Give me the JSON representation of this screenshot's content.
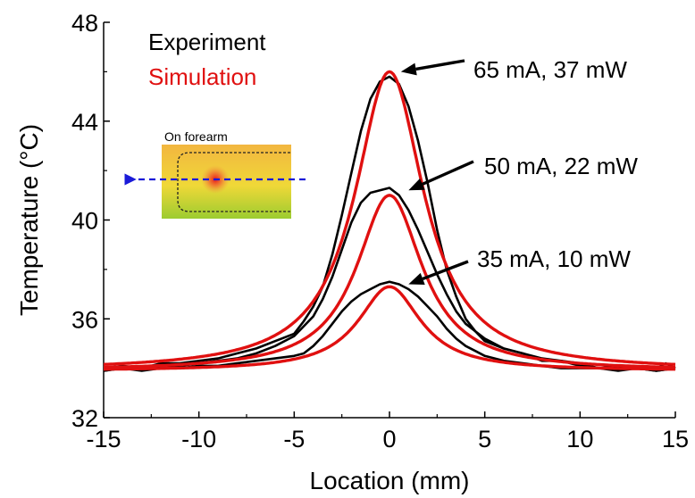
{
  "chart_data": {
    "type": "line",
    "xlabel": "Location (mm)",
    "ylabel": "Temperature (°C)",
    "xlim": [
      -15,
      15
    ],
    "ylim": [
      32,
      48
    ],
    "xticks": [
      -15,
      -10,
      -5,
      0,
      5,
      10,
      15
    ],
    "yticks": [
      32,
      36,
      40,
      44,
      48
    ],
    "legend": [
      {
        "name": "Experiment",
        "color": "#000000"
      },
      {
        "name": "Simulation",
        "color": "#e01010"
      }
    ],
    "inset": {
      "title": "On forearm"
    },
    "annotations": [
      {
        "text": "65 mA, 37 mW",
        "target": [
          0.6,
          46.0
        ]
      },
      {
        "text": "50 mA, 22 mW",
        "target": [
          1.0,
          41.2
        ]
      },
      {
        "text": "35 mA, 10 mW",
        "target": [
          1.0,
          37.4
        ]
      }
    ],
    "series": [
      {
        "group": "Experiment",
        "color": "#000000",
        "x": [
          -15,
          -14,
          -13,
          -12,
          -11,
          -10,
          -9,
          -8,
          -7,
          -6,
          -5,
          -4.5,
          -4,
          -3.5,
          -3,
          -2.5,
          -2,
          -1.5,
          -1,
          -0.5,
          0,
          0.5,
          1,
          1.5,
          2,
          2.5,
          3,
          3.5,
          4,
          4.5,
          5,
          6,
          7,
          8,
          9,
          10,
          11,
          12,
          13,
          14,
          14.5,
          15
        ],
        "y": [
          34.0,
          34.1,
          34.0,
          34.2,
          34.2,
          34.3,
          34.4,
          34.6,
          34.8,
          35.1,
          35.4,
          35.9,
          36.5,
          37.3,
          38.6,
          40.2,
          41.9,
          43.6,
          44.9,
          45.6,
          45.8,
          45.5,
          44.6,
          43.2,
          41.5,
          39.6,
          38.0,
          36.9,
          36.0,
          35.5,
          35.1,
          34.8,
          34.6,
          34.3,
          34.3,
          34.2,
          34.0,
          34.1,
          34.0,
          34.0,
          34.2,
          34.0
        ]
      },
      {
        "group": "Experiment",
        "color": "#000000",
        "x": [
          -15,
          -14,
          -13,
          -12,
          -11,
          -10,
          -9,
          -8,
          -7,
          -6,
          -5,
          -4.5,
          -4,
          -3.5,
          -3,
          -2.5,
          -2,
          -1.5,
          -1,
          -0.5,
          0,
          0.5,
          1,
          1.5,
          2,
          2.5,
          3,
          3.5,
          4,
          4.5,
          5,
          6,
          7,
          8,
          9,
          10,
          11,
          12,
          13,
          14,
          15
        ],
        "y": [
          33.9,
          34.0,
          34.0,
          34.1,
          34.1,
          34.2,
          34.3,
          34.4,
          34.6,
          34.9,
          35.3,
          35.7,
          36.1,
          36.8,
          37.7,
          38.8,
          39.9,
          40.7,
          41.1,
          41.2,
          41.3,
          41.0,
          40.4,
          39.6,
          38.7,
          37.8,
          37.0,
          36.3,
          35.8,
          35.5,
          35.2,
          34.8,
          34.6,
          34.4,
          34.3,
          34.1,
          34.0,
          34.0,
          34.0,
          33.9,
          34.0
        ]
      },
      {
        "group": "Experiment",
        "color": "#000000",
        "x": [
          -15,
          -14,
          -13,
          -12,
          -11,
          -10,
          -9,
          -8,
          -7,
          -6,
          -5,
          -4.5,
          -4,
          -3.5,
          -3,
          -2.5,
          -2,
          -1.5,
          -1,
          -0.5,
          0,
          0.5,
          1,
          1.5,
          2,
          2.5,
          3,
          3.5,
          4,
          4.5,
          5,
          6,
          7,
          8,
          9,
          10,
          11,
          12,
          13,
          14,
          15
        ],
        "y": [
          33.9,
          34.0,
          33.9,
          34.0,
          34.0,
          34.1,
          34.1,
          34.2,
          34.3,
          34.4,
          34.5,
          34.6,
          34.9,
          35.3,
          35.8,
          36.3,
          36.7,
          37.0,
          37.2,
          37.4,
          37.5,
          37.4,
          37.2,
          36.9,
          36.5,
          36.1,
          35.6,
          35.2,
          34.9,
          34.7,
          34.5,
          34.3,
          34.2,
          34.1,
          34.0,
          34.0,
          34.0,
          33.9,
          34.0,
          33.9,
          34.0
        ]
      },
      {
        "group": "Simulation",
        "color": "#e01010",
        "peak": 46.0,
        "base": 33.9,
        "gamma": 2.2
      },
      {
        "group": "Simulation",
        "color": "#e01010",
        "peak": 41.0,
        "base": 33.9,
        "gamma": 2.1
      },
      {
        "group": "Simulation",
        "color": "#e01010",
        "peak": 37.3,
        "base": 33.9,
        "gamma": 2.0
      }
    ]
  }
}
